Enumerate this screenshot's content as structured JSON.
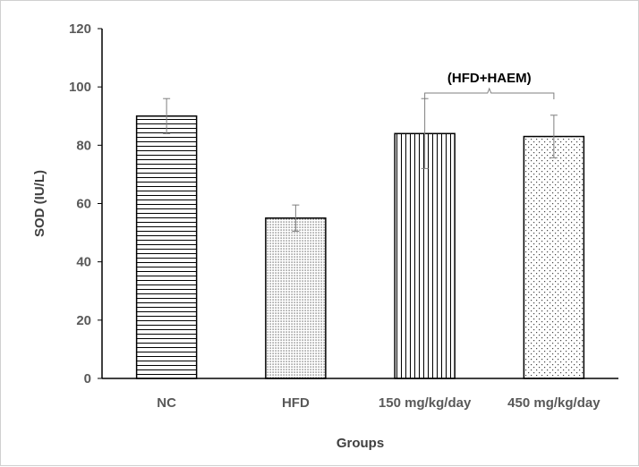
{
  "chart_data": {
    "type": "bar",
    "categories": [
      "NC",
      "HFD",
      "150 mg/kg/day",
      "450 mg/kg/day"
    ],
    "values": [
      90,
      55,
      84,
      83
    ],
    "error": [
      6,
      4.5,
      12,
      7.3
    ],
    "patterns": [
      "horizontal-lines",
      "fine-dots",
      "vertical-lines",
      "sparse-dots"
    ],
    "title": "",
    "xlabel": "Groups",
    "ylabel": "SOD  (IU/L)",
    "ylim": [
      0,
      120
    ],
    "yticks": [
      0,
      20,
      40,
      60,
      80,
      100,
      120
    ],
    "grid": false,
    "annotation": {
      "text": "(HFD+HAEM)",
      "spans": [
        "150 mg/kg/day",
        "450 mg/kg/day"
      ]
    }
  }
}
